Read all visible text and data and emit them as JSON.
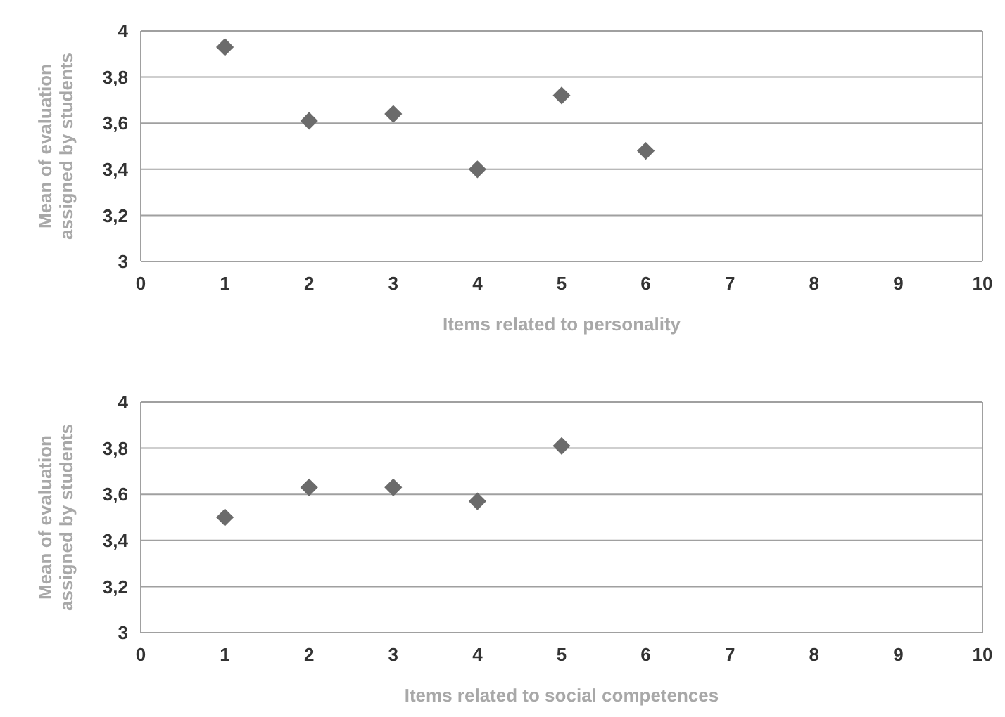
{
  "chart_data": [
    {
      "type": "scatter",
      "xlabel": "Items related to personality",
      "ylabel": "Mean of evaluation assigned by students",
      "xlim": [
        0,
        10
      ],
      "xticks": [
        0,
        1,
        2,
        3,
        4,
        5,
        6,
        7,
        8,
        9,
        10
      ],
      "ylim": [
        3,
        4
      ],
      "yticks": [
        {
          "value": 3,
          "label": "3"
        },
        {
          "value": 3.2,
          "label": "3,2"
        },
        {
          "value": 3.4,
          "label": "3,4"
        },
        {
          "value": 3.6,
          "label": "3,6"
        },
        {
          "value": 3.8,
          "label": "3,8"
        },
        {
          "value": 4,
          "label": "4"
        }
      ],
      "grid": "y",
      "marker": "diamond",
      "series": [
        {
          "color": "#6b6b6b",
          "x": [
            1,
            2,
            3,
            4,
            5,
            6
          ],
          "values": [
            3.93,
            3.61,
            3.64,
            3.4,
            3.72,
            3.48
          ]
        }
      ]
    },
    {
      "type": "scatter",
      "xlabel": "Items related to social competences",
      "ylabel": "Mean of evaluation assigned by students",
      "xlim": [
        0,
        10
      ],
      "xticks": [
        0,
        1,
        2,
        3,
        4,
        5,
        6,
        7,
        8,
        9,
        10
      ],
      "ylim": [
        3,
        4
      ],
      "yticks": [
        {
          "value": 3,
          "label": "3"
        },
        {
          "value": 3.2,
          "label": "3,2"
        },
        {
          "value": 3.4,
          "label": "3,4"
        },
        {
          "value": 3.6,
          "label": "3,6"
        },
        {
          "value": 3.8,
          "label": "3,8"
        },
        {
          "value": 4,
          "label": "4"
        }
      ],
      "grid": "y",
      "marker": "diamond",
      "series": [
        {
          "color": "#6b6b6b",
          "x": [
            1,
            2,
            3,
            4,
            5
          ],
          "values": [
            3.5,
            3.63,
            3.63,
            3.57,
            3.81
          ]
        }
      ]
    }
  ]
}
